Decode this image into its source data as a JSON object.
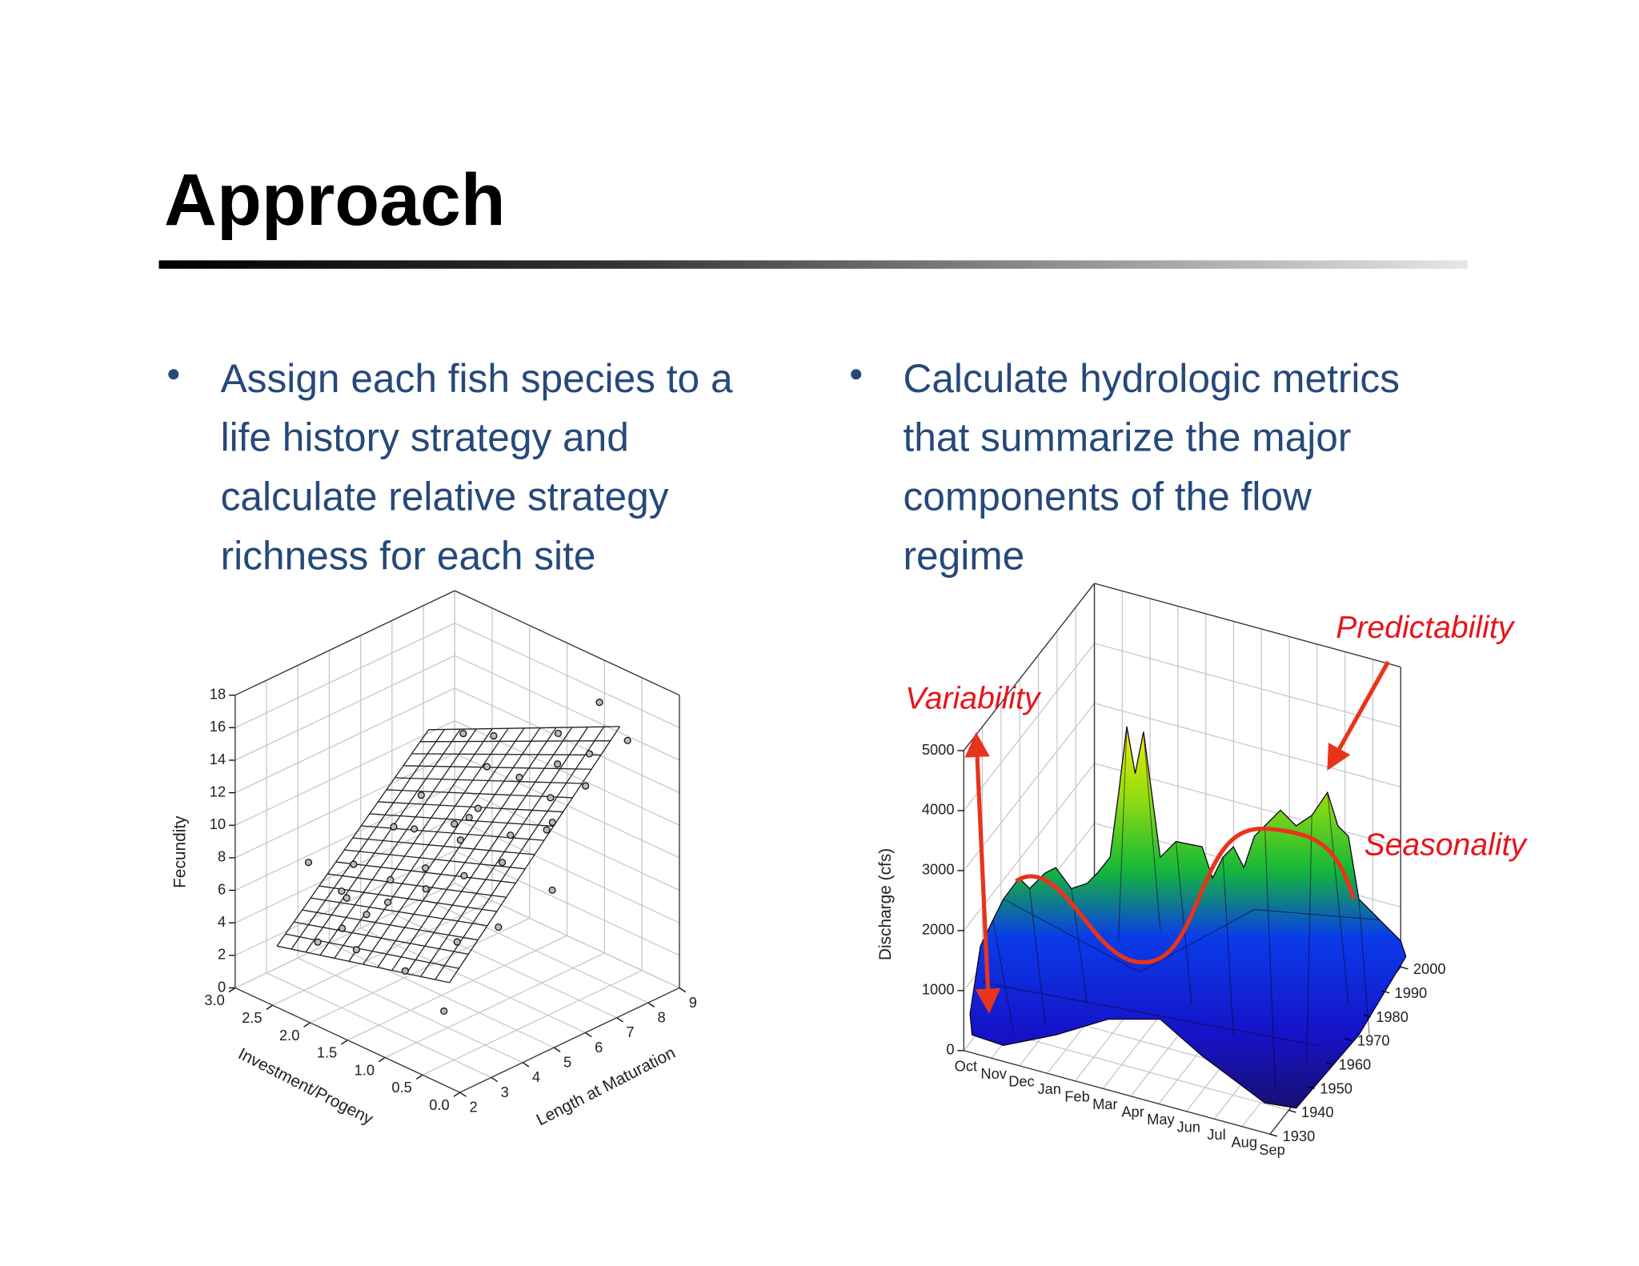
{
  "title": "Approach",
  "bullets": [
    [
      "Assign each fish species to a",
      "life history strategy and",
      "calculate relative strategy",
      "richness for each site"
    ],
    [
      "Calculate hydrologic metrics",
      "that summarize the major",
      "components of the flow",
      "regime"
    ]
  ],
  "chart_data": [
    {
      "type": "scatter3d",
      "z_label": "Fecundity",
      "x_label": "Investment/Progeny",
      "y_label": "Length at Maturation",
      "zlim": [
        0,
        18
      ],
      "zticks": [
        0,
        2,
        4,
        6,
        8,
        10,
        12,
        14,
        16,
        18
      ],
      "xlim": [
        0,
        3
      ],
      "xticks": [
        {
          "value": 0,
          "label": "0.0"
        },
        {
          "value": 0.5,
          "label": "0.5"
        },
        {
          "value": 1,
          "label": "1.0"
        },
        {
          "value": 1.5,
          "label": "1.5"
        },
        {
          "value": 2,
          "label": "2.0"
        },
        {
          "value": 2.5,
          "label": "2.5"
        },
        {
          "value": 3,
          "label": "3.0"
        }
      ],
      "ylim": [
        2,
        9
      ],
      "yticks": [
        2,
        3,
        4,
        5,
        6,
        7,
        8,
        9
      ],
      "points": [
        [
          3.2,
          2.4,
          3
        ],
        [
          3.5,
          2.2,
          4
        ],
        [
          3.8,
          2.0,
          5
        ],
        [
          4.0,
          1.8,
          6
        ],
        [
          4.2,
          2.5,
          5
        ],
        [
          4.5,
          1.5,
          7
        ],
        [
          4.8,
          2.1,
          6
        ],
        [
          5.0,
          1.2,
          8
        ],
        [
          5.2,
          1.8,
          7
        ],
        [
          5.5,
          0.9,
          9
        ],
        [
          5.6,
          1.5,
          9
        ],
        [
          5.8,
          2.2,
          8
        ],
        [
          6.0,
          1.0,
          10
        ],
        [
          6.2,
          0.6,
          11
        ],
        [
          6.4,
          1.6,
          10
        ],
        [
          6.5,
          2.4,
          9
        ],
        [
          6.8,
          0.8,
          12
        ],
        [
          7.0,
          1.3,
          12
        ],
        [
          7.2,
          0.5,
          13
        ],
        [
          7.5,
          1.0,
          13
        ],
        [
          7.8,
          0.7,
          14
        ],
        [
          8.0,
          1.2,
          14
        ],
        [
          8.3,
          0.4,
          15
        ],
        [
          4.3,
          1.0,
          5
        ],
        [
          4.6,
          2.6,
          4
        ],
        [
          5.3,
          2.8,
          5
        ],
        [
          3.6,
          1.4,
          3
        ],
        [
          5.9,
          0.4,
          8
        ],
        [
          6.6,
          2.0,
          8
        ],
        [
          7.4,
          1.9,
          11
        ],
        [
          3.0,
          1.8,
          4
        ],
        [
          4.9,
          0.7,
          6
        ],
        [
          6.1,
          2.6,
          7
        ],
        [
          7.6,
          2.3,
          12
        ],
        [
          8.6,
          0.9,
          16
        ],
        [
          5.4,
          1.3,
          11
        ],
        [
          4.1,
          2.9,
          6
        ],
        [
          6.9,
          1.6,
          14
        ],
        [
          3.4,
          0.8,
          2
        ],
        [
          7.1,
          0.9,
          10
        ]
      ]
    },
    {
      "type": "surface3d",
      "z_label": "Discharge (cfs)",
      "zlim": [
        0,
        5000
      ],
      "zticks": [
        0,
        1000,
        2000,
        3000,
        4000,
        5000
      ],
      "months": [
        "Oct",
        "Nov",
        "Dec",
        "Jan",
        "Feb",
        "Mar",
        "Apr",
        "May",
        "Jun",
        "Jul",
        "Aug",
        "Sep"
      ],
      "ylim": [
        1930,
        2000
      ],
      "yticks": [
        1930,
        1940,
        1950,
        1960,
        1970,
        1980,
        1990,
        2000
      ],
      "annotations": [
        "Variability",
        "Predictability",
        "Seasonality"
      ]
    }
  ]
}
